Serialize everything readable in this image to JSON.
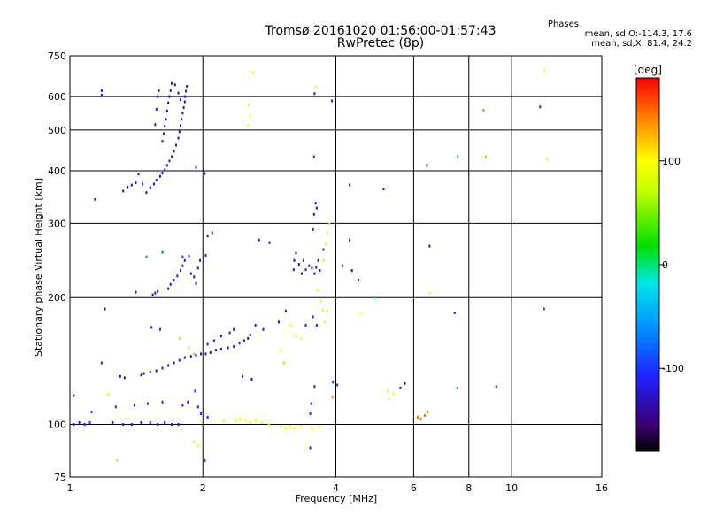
{
  "title": "Tromsø 20161020 01:56:00-01:57:43",
  "subtitle": "RwPretec (8p)",
  "phases": {
    "heading": "Phases",
    "line_o": "mean, sd,O:-114.3, 17.6",
    "line_x": "mean, sd,X: 81.4, 24.2"
  },
  "chart_data": {
    "type": "scatter",
    "xlabel": "Frequency [MHz]",
    "ylabel": "Stationary phase Virtual Height [km]",
    "x_scale": "log",
    "y_scale": "log",
    "xlim": [
      1,
      16
    ],
    "ylim": [
      75,
      750
    ],
    "x_ticks": [
      1,
      2,
      4,
      6,
      8,
      10,
      16
    ],
    "y_ticks": [
      75,
      100,
      200,
      300,
      400,
      500,
      600,
      750
    ],
    "colorbar": {
      "label": "[deg]",
      "range": [
        -180,
        180
      ],
      "ticks": [
        100,
        0,
        -100
      ],
      "colormap": "rainbow"
    },
    "grid": true,
    "points": [
      [
        1.18,
        620,
        -120
      ],
      [
        1.18,
        605,
        -120
      ],
      [
        1.14,
        342,
        -110
      ],
      [
        1.32,
        358,
        -130
      ],
      [
        1.35,
        366,
        -130
      ],
      [
        1.38,
        370,
        -130
      ],
      [
        1.41,
        375,
        -130
      ],
      [
        1.43,
        393,
        -130
      ],
      [
        1.46,
        372,
        -130
      ],
      [
        1.49,
        355,
        -130
      ],
      [
        1.52,
        365,
        -130
      ],
      [
        1.55,
        372,
        -130
      ],
      [
        1.57,
        380,
        -130
      ],
      [
        1.6,
        388,
        -130
      ],
      [
        1.62,
        395,
        -130
      ],
      [
        1.64,
        402,
        -130
      ],
      [
        1.66,
        412,
        -130
      ],
      [
        1.68,
        422,
        -130
      ],
      [
        1.7,
        432,
        -130
      ],
      [
        1.72,
        445,
        -130
      ],
      [
        1.74,
        460,
        -130
      ],
      [
        1.76,
        478,
        -130
      ],
      [
        1.77,
        495,
        -130
      ],
      [
        1.78,
        512,
        -130
      ],
      [
        1.79,
        530,
        -130
      ],
      [
        1.8,
        548,
        -130
      ],
      [
        1.81,
        565,
        -130
      ],
      [
        1.82,
        583,
        -130
      ],
      [
        1.82,
        600,
        -130
      ],
      [
        1.83,
        618,
        -130
      ],
      [
        1.84,
        635,
        -130
      ],
      [
        1.62,
        470,
        -130
      ],
      [
        1.63,
        490,
        -130
      ],
      [
        1.64,
        510,
        -130
      ],
      [
        1.65,
        530,
        -130
      ],
      [
        1.66,
        555,
        -130
      ],
      [
        1.67,
        580,
        -130
      ],
      [
        1.68,
        600,
        -130
      ],
      [
        1.69,
        620,
        -130
      ],
      [
        1.7,
        645,
        -130
      ],
      [
        1.73,
        640,
        -130
      ],
      [
        1.76,
        612,
        -130
      ],
      [
        1.78,
        590,
        -130
      ],
      [
        1.56,
        515,
        -130
      ],
      [
        1.57,
        560,
        -130
      ],
      [
        1.58,
        600,
        -130
      ],
      [
        1.59,
        620,
        -130
      ],
      [
        1.2,
        188,
        -130
      ],
      [
        1.41,
        206,
        -125
      ],
      [
        1.54,
        203,
        -130
      ],
      [
        1.56,
        205,
        -130
      ],
      [
        1.58,
        207,
        -130
      ],
      [
        1.67,
        210,
        -125
      ],
      [
        1.69,
        215,
        -125
      ],
      [
        1.72,
        220,
        -125
      ],
      [
        1.75,
        225,
        -125
      ],
      [
        1.78,
        232,
        -125
      ],
      [
        1.8,
        238,
        -125
      ],
      [
        1.82,
        245,
        -125
      ],
      [
        1.86,
        251,
        -125
      ],
      [
        1.88,
        228,
        -125
      ],
      [
        1.91,
        224,
        -125
      ],
      [
        1.93,
        216,
        -125
      ],
      [
        1.95,
        235,
        -125
      ],
      [
        1.97,
        245,
        -125
      ],
      [
        2.03,
        252,
        -125
      ],
      [
        2.05,
        280,
        -125
      ],
      [
        2.1,
        285,
        -125
      ],
      [
        2.02,
        394,
        -125
      ],
      [
        1.93,
        407,
        -100
      ],
      [
        1.8,
        250,
        -100
      ],
      [
        1.62,
        256,
        -80
      ],
      [
        1.49,
        250,
        -60
      ],
      [
        1.18,
        140,
        -110
      ],
      [
        1.3,
        130,
        -130
      ],
      [
        1.33,
        129,
        -130
      ],
      [
        1.45,
        131,
        -130
      ],
      [
        1.47,
        132,
        -130
      ],
      [
        1.52,
        133,
        -130
      ],
      [
        1.57,
        134,
        -130
      ],
      [
        1.62,
        136,
        -130
      ],
      [
        1.67,
        138,
        -130
      ],
      [
        1.72,
        140,
        -130
      ],
      [
        1.77,
        142,
        -130
      ],
      [
        1.82,
        144,
        -130
      ],
      [
        1.88,
        145,
        -130
      ],
      [
        1.93,
        146,
        -130
      ],
      [
        1.98,
        147,
        -130
      ],
      [
        2.03,
        147,
        -130
      ],
      [
        2.08,
        148,
        -130
      ],
      [
        2.14,
        150,
        -130
      ],
      [
        2.2,
        151,
        -130
      ],
      [
        2.28,
        152,
        -130
      ],
      [
        2.35,
        153,
        -130
      ],
      [
        2.42,
        156,
        -130
      ],
      [
        2.48,
        158,
        -130
      ],
      [
        2.53,
        160,
        -130
      ],
      [
        2.56,
        163,
        -125
      ],
      [
        2.05,
        155,
        -125
      ],
      [
        2.12,
        158,
        -125
      ],
      [
        2.2,
        162,
        -125
      ],
      [
        2.3,
        165,
        -125
      ],
      [
        2.35,
        168,
        -125
      ],
      [
        2.63,
        172,
        -125
      ],
      [
        2.74,
        168,
        -125
      ],
      [
        1.91,
        147,
        60
      ],
      [
        1.86,
        152,
        60
      ],
      [
        1.77,
        160,
        60
      ],
      [
        1.22,
        118,
        80
      ],
      [
        1.02,
        117,
        -120
      ],
      [
        1.02,
        100,
        -110
      ],
      [
        1.05,
        101,
        -110
      ],
      [
        1.08,
        100,
        -110
      ],
      [
        1.11,
        101,
        -100
      ],
      [
        1.12,
        107,
        -100
      ],
      [
        1.25,
        101,
        -125
      ],
      [
        1.32,
        100,
        -125
      ],
      [
        1.38,
        100,
        -125
      ],
      [
        1.45,
        101,
        -125
      ],
      [
        1.52,
        101,
        -125
      ],
      [
        1.58,
        100,
        -125
      ],
      [
        1.64,
        101,
        -125
      ],
      [
        1.7,
        100,
        -125
      ],
      [
        1.76,
        100,
        -125
      ],
      [
        1.27,
        110,
        -110
      ],
      [
        1.4,
        111,
        -110
      ],
      [
        1.5,
        112,
        -110
      ],
      [
        1.62,
        113,
        -110
      ],
      [
        1.8,
        111,
        -110
      ],
      [
        1.85,
        113,
        -110
      ],
      [
        1.95,
        110,
        -110
      ],
      [
        1.98,
        106,
        -110
      ],
      [
        2.05,
        104,
        -110
      ],
      [
        1.92,
        120,
        -100
      ],
      [
        1.91,
        91,
        90
      ],
      [
        1.95,
        89,
        90
      ],
      [
        1.28,
        82,
        60
      ],
      [
        2.02,
        82,
        -100
      ],
      [
        2.37,
        102,
        90
      ],
      [
        2.43,
        103,
        90
      ],
      [
        2.5,
        102,
        90
      ],
      [
        2.56,
        101,
        90
      ],
      [
        2.64,
        102,
        90
      ],
      [
        2.72,
        101,
        90
      ],
      [
        2.82,
        100,
        90
      ],
      [
        3.0,
        99,
        100
      ],
      [
        3.08,
        98,
        100
      ],
      [
        3.15,
        99,
        100
      ],
      [
        3.22,
        98,
        100
      ],
      [
        3.33,
        99,
        100
      ],
      [
        3.53,
        98,
        100
      ],
      [
        3.68,
        99,
        100
      ],
      [
        3.5,
        106,
        -100
      ],
      [
        3.52,
        112,
        -120
      ],
      [
        3.5,
        88,
        -110
      ],
      [
        3.21,
        233,
        -130
      ],
      [
        3.22,
        245,
        -130
      ],
      [
        3.25,
        255,
        -130
      ],
      [
        3.3,
        240,
        -130
      ],
      [
        3.35,
        228,
        -130
      ],
      [
        3.38,
        245,
        -130
      ],
      [
        3.42,
        233,
        -130
      ],
      [
        3.48,
        238,
        -130
      ],
      [
        3.53,
        235,
        -130
      ],
      [
        3.58,
        228,
        -130
      ],
      [
        3.61,
        236,
        -130
      ],
      [
        3.65,
        245,
        -130
      ],
      [
        3.68,
        232,
        -130
      ],
      [
        3.75,
        260,
        -130
      ],
      [
        3.55,
        290,
        -130
      ],
      [
        3.57,
        315,
        -130
      ],
      [
        3.6,
        335,
        -130
      ],
      [
        3.62,
        326,
        -130
      ],
      [
        3.57,
        432,
        -130
      ],
      [
        3.75,
        245,
        80
      ],
      [
        3.79,
        268,
        80
      ],
      [
        3.83,
        285,
        80
      ],
      [
        3.87,
        300,
        80
      ],
      [
        3.63,
        208,
        80
      ],
      [
        3.7,
        196,
        80
      ],
      [
        3.74,
        187,
        80
      ],
      [
        3.78,
        175,
        80
      ],
      [
        3.82,
        186,
        80
      ],
      [
        3.16,
        172,
        90
      ],
      [
        3.25,
        162,
        90
      ],
      [
        3.33,
        160,
        90
      ],
      [
        3.42,
        172,
        -120
      ],
      [
        3.62,
        172,
        -120
      ],
      [
        3.55,
        180,
        -120
      ],
      [
        2.97,
        175,
        -130
      ],
      [
        3.08,
        186,
        -130
      ],
      [
        3.0,
        150,
        90
      ],
      [
        3.05,
        140,
        60
      ],
      [
        3.58,
        123,
        -110
      ],
      [
        3.94,
        126,
        -100
      ],
      [
        3.93,
        116,
        140
      ],
      [
        4.03,
        124,
        -100
      ],
      [
        4.14,
        238,
        -130
      ],
      [
        4.3,
        274,
        -130
      ],
      [
        4.35,
        232,
        -130
      ],
      [
        4.5,
        220,
        -130
      ],
      [
        4.56,
        184,
        100
      ],
      [
        4.3,
        370,
        -130
      ],
      [
        3.92,
        586,
        -130
      ],
      [
        3.6,
        632,
        90
      ],
      [
        3.58,
        610,
        -120
      ],
      [
        5.13,
        362,
        -130
      ],
      [
        4.92,
        200,
        -10
      ],
      [
        5.23,
        120,
        90
      ],
      [
        5.28,
        115,
        90
      ],
      [
        5.4,
        118,
        90
      ],
      [
        5.6,
        122,
        -130
      ],
      [
        5.73,
        125,
        -130
      ],
      [
        6.13,
        104,
        150
      ],
      [
        6.23,
        103,
        150
      ],
      [
        6.36,
        105,
        150
      ],
      [
        6.45,
        107,
        150
      ],
      [
        6.53,
        205,
        90
      ],
      [
        6.52,
        265,
        -130
      ],
      [
        6.43,
        412,
        -130
      ],
      [
        7.43,
        184,
        -120
      ],
      [
        7.53,
        122,
        -40
      ],
      [
        7.55,
        432,
        -60
      ],
      [
        8.64,
        557,
        150
      ],
      [
        8.74,
        432,
        130
      ],
      [
        9.23,
        123,
        -130
      ],
      [
        11.6,
        567,
        -120
      ],
      [
        12.02,
        425,
        90
      ],
      [
        11.87,
        691,
        90
      ],
      [
        11.84,
        188,
        -100
      ],
      [
        2.23,
        102,
        80
      ],
      [
        2.54,
        574,
        90
      ],
      [
        2.56,
        537,
        90
      ],
      [
        2.53,
        512,
        90
      ],
      [
        2.6,
        685,
        90
      ],
      [
        1.6,
        168,
        -120
      ],
      [
        1.53,
        170,
        -120
      ],
      [
        2.46,
        130,
        -130
      ],
      [
        2.58,
        128,
        -130
      ],
      [
        2.68,
        274,
        -130
      ],
      [
        2.83,
        270,
        -130
      ]
    ]
  }
}
